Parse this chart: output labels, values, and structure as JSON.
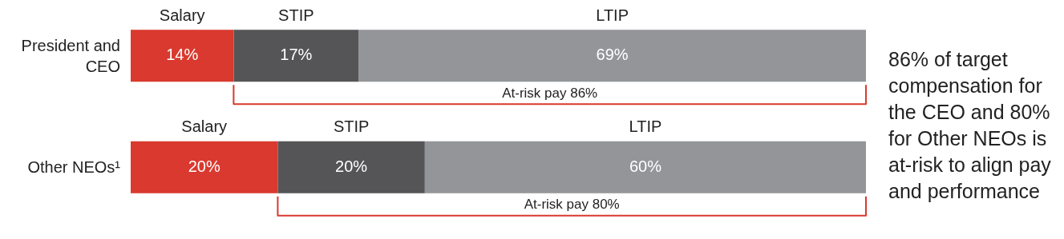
{
  "chart_data": {
    "type": "bar",
    "orientation": "horizontal",
    "stacked": true,
    "legend": "top",
    "tick_labels": false,
    "xlim": [
      0,
      100
    ],
    "categories": [
      "President and CEO",
      "Other NEOs¹"
    ],
    "series": [
      {
        "name": "Salary",
        "color": "#d9392e",
        "values": [
          14,
          20
        ],
        "value_labels": [
          "14%",
          "20%"
        ]
      },
      {
        "name": "STIP",
        "color": "#555557",
        "values": [
          17,
          20
        ],
        "value_labels": [
          "17%",
          "20%"
        ]
      },
      {
        "name": "LTIP",
        "color": "#939598",
        "values": [
          69,
          60
        ],
        "value_labels": [
          "69%",
          "60%"
        ]
      }
    ],
    "annotations": [
      "At-risk pay 86%",
      "At-risk pay 80%",
      "86% of target compensation for the CEO and 80% for Other NEOs is at-risk to align pay and performance"
    ]
  }
}
